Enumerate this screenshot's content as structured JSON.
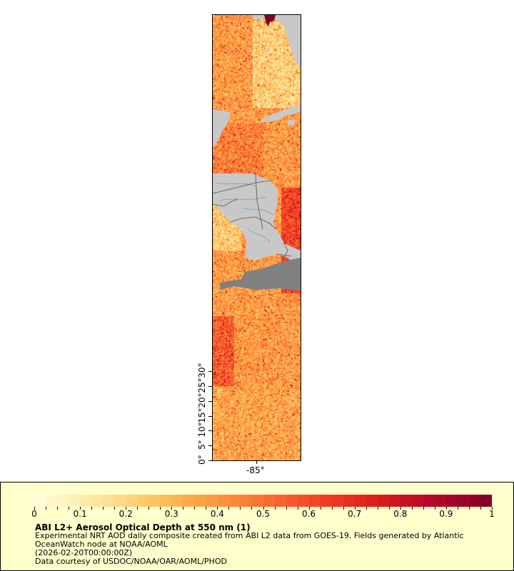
{
  "map": {
    "lat_labels": [
      "0°",
      "5°",
      "10°",
      "15°",
      "20°",
      "25°",
      "30°"
    ],
    "lon_label": "-85°",
    "land_color": "#c8c8c8",
    "nodata_color": "#808080",
    "border_color": "#404040",
    "river_color": "#6a9fd8"
  },
  "legend": {
    "tick_labels": [
      "0",
      "0.1",
      "0.2",
      "0.3",
      "0.4",
      "0.5",
      "0.6",
      "0.7",
      "0.8",
      "0.9",
      "1"
    ],
    "title": "ABI L2+ Aerosol Optical Depth at 550 nm (1)",
    "description_line1": "Experimental NRT AOD daily composite created from ABI L2 data from GOES-19. Fields generated by Atlantic",
    "description_line2": "OceanWatch node at NOAA/AOML",
    "time": "(2026-02-20T00:00:00Z)",
    "credit": "Data courtesy of USDOC/NOAA/OAR/AOML/PHOD",
    "colorscale": [
      "#ffffe0",
      "#fde9a8",
      "#fdc868",
      "#fca040",
      "#fb7034",
      "#f34025",
      "#dc1c1c",
      "#b50529",
      "#800026"
    ],
    "range": [
      0,
      1
    ]
  }
}
